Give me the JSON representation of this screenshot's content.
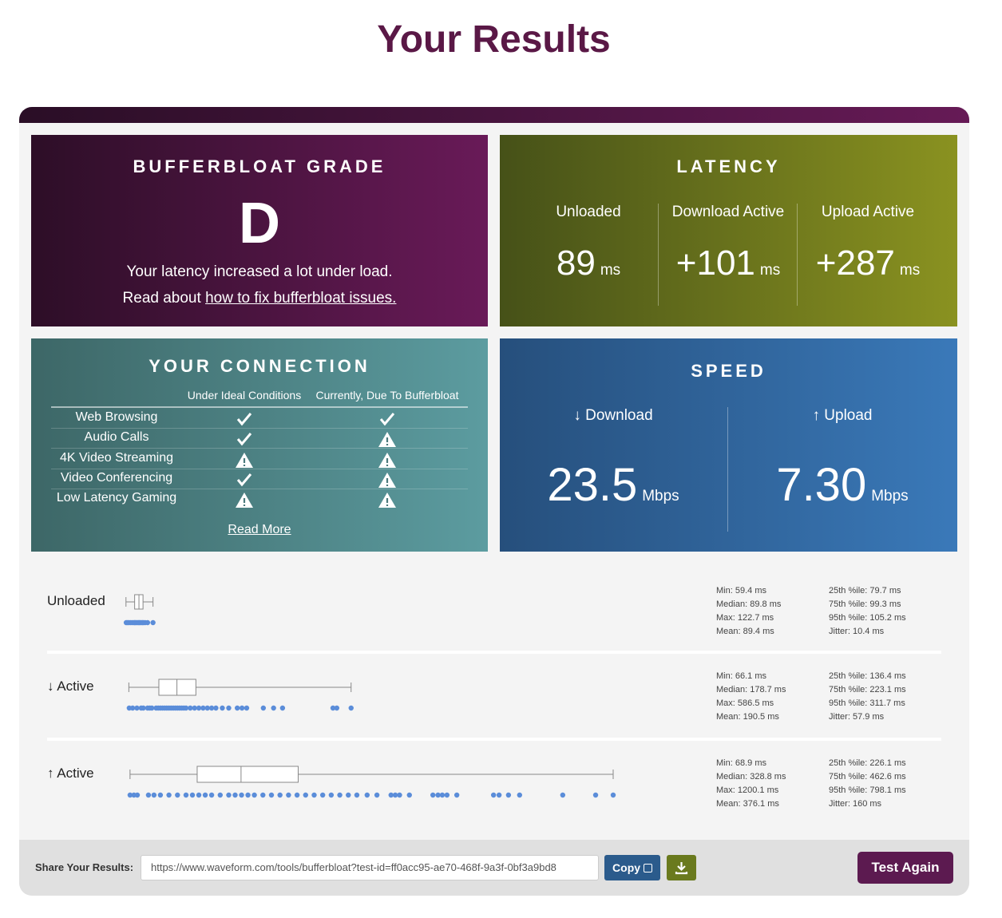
{
  "header": {
    "title": "Your Results"
  },
  "grade": {
    "title": "BUFFERBLOAT GRADE",
    "grade": "D",
    "message": "Your latency increased a lot under load.",
    "read_prefix": "Read about",
    "link": "how to fix bufferbloat issues."
  },
  "latency": {
    "title": "LATENCY",
    "unit": "ms",
    "items": [
      {
        "label": "Unloaded",
        "value": "89"
      },
      {
        "label": "Download Active",
        "value": "+101"
      },
      {
        "label": "Upload Active",
        "value": "+287"
      }
    ]
  },
  "connection": {
    "title": "YOUR CONNECTION",
    "columns": [
      "Under Ideal Conditions",
      "Currently, Due To Bufferbloat"
    ],
    "rows": [
      {
        "label": "Web Browsing",
        "ideal": "ok",
        "current": "ok"
      },
      {
        "label": "Audio Calls",
        "ideal": "ok",
        "current": "warn"
      },
      {
        "label": "4K Video Streaming",
        "ideal": "warn",
        "current": "warn"
      },
      {
        "label": "Video Conferencing",
        "ideal": "ok",
        "current": "warn"
      },
      {
        "label": "Low Latency Gaming",
        "ideal": "warn",
        "current": "warn"
      }
    ],
    "link": "Read More"
  },
  "speed": {
    "title": "SPEED",
    "items": [
      {
        "label": "↓ Download",
        "value": "23.5",
        "unit": "Mbps"
      },
      {
        "label": "↑ Upload",
        "value": "7.30",
        "unit": "Mbps"
      }
    ]
  },
  "latency_detail": {
    "unit": "ms",
    "stat_labels": {
      "min": "Min:",
      "median": "Median:",
      "max": "Max:",
      "mean": "Mean:",
      "p25": "25th %ile:",
      "p75": "75th %ile:",
      "p95": "95th %ile:",
      "jitter": "Jitter:"
    },
    "rows": [
      {
        "label": "Unloaded",
        "min": 59.4,
        "median": 89.8,
        "max": 122.7,
        "mean": 89.4,
        "p25": 79.7,
        "p75": 99.3,
        "p95": 105.2,
        "jitter": 10.4,
        "samples": [
          60,
          63,
          66,
          70,
          74,
          78,
          80,
          82,
          85,
          88,
          90,
          92,
          95,
          98,
          100,
          104,
          110,
          122.7
        ]
      },
      {
        "label": "↓ Active",
        "min": 66.1,
        "median": 178.7,
        "max": 586.5,
        "mean": 190.5,
        "p25": 136.4,
        "p75": 223.1,
        "p95": 311.7,
        "jitter": 57.9,
        "samples": [
          67,
          75,
          85,
          95,
          100,
          110,
          115,
          120,
          130,
          135,
          140,
          145,
          150,
          155,
          160,
          165,
          170,
          175,
          180,
          185,
          190,
          195,
          200,
          210,
          220,
          230,
          240,
          250,
          260,
          270,
          285,
          300,
          320,
          331,
          342,
          381,
          405,
          426,
          544,
          553,
          586.5
        ]
      },
      {
        "label": "↑ Active",
        "min": 68.9,
        "median": 328.8,
        "max": 1200.1,
        "mean": 376.1,
        "p25": 226.1,
        "p75": 462.6,
        "p95": 798.1,
        "jitter": 160,
        "samples": [
          69,
          78,
          86,
          112,
          125,
          140,
          160,
          180,
          200,
          215,
          230,
          245,
          260,
          280,
          300,
          315,
          330,
          345,
          360,
          380,
          400,
          420,
          440,
          460,
          480,
          500,
          520,
          540,
          560,
          580,
          600,
          624,
          647,
          680,
          690,
          700,
          723,
          778,
          790,
          800,
          811,
          834,
          920,
          933,
          955,
          981,
          1082,
          1159,
          1200.1
        ]
      }
    ]
  },
  "share": {
    "label": "Share Your Results:",
    "url": "https://www.waveform.com/tools/bufferbloat?test-id=ff0acc95-ae70-468f-9a3f-0bf3a9bd8",
    "copy": "Copy",
    "button": "Test Again"
  }
}
